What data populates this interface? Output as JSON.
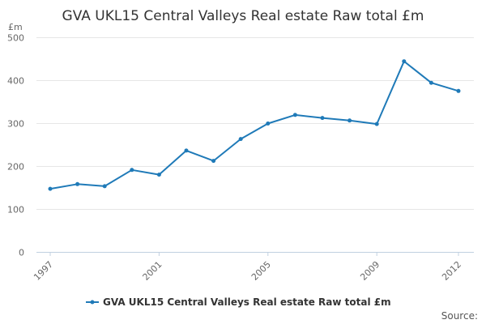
{
  "chart_data": {
    "type": "line",
    "title": "GVA UKL15 Central Valleys Real estate Raw total £m",
    "unit_label": "£m",
    "x": [
      1997,
      1998,
      1999,
      2000,
      2001,
      2002,
      2003,
      2004,
      2005,
      2006,
      2007,
      2008,
      2009,
      2010,
      2011,
      2012
    ],
    "x_tick_labels": [
      "1997",
      "2001",
      "2005",
      "2009",
      "2012"
    ],
    "y_ticks": [
      0,
      100,
      200,
      300,
      400,
      500
    ],
    "ylim": [
      0,
      500
    ],
    "series": [
      {
        "name": "GVA UKL15 Central Valleys Real estate Raw total £m",
        "color": "#1f7ab8",
        "values": [
          147,
          158,
          153,
          191,
          180,
          236,
          212,
          263,
          299,
          319,
          312,
          306,
          298,
          444,
          394,
          375
        ]
      }
    ],
    "grid": true,
    "legend_position": "bottom"
  },
  "footer": {
    "source_label": "Source:"
  }
}
